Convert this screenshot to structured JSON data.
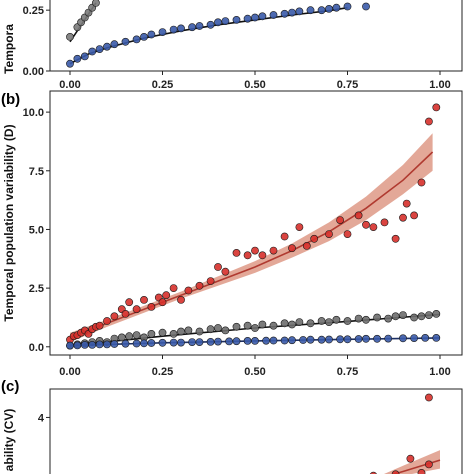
{
  "chart_data": [
    {
      "type": "scatter",
      "panel_label": "",
      "ylabel": "Tempora",
      "xlim": [
        0,
        1
      ],
      "ylim": [
        0,
        0.3
      ],
      "yticks": [
        "0.00",
        "0.25"
      ],
      "xticks": [
        "0.00",
        "0.25",
        "0.50",
        "0.75",
        "1.00"
      ],
      "grid": false,
      "series": [
        {
          "color": "#7a7a7a",
          "points": [
            [
              0.0,
              0.14
            ],
            [
              0.02,
              0.18
            ],
            [
              0.03,
              0.2
            ],
            [
              0.04,
              0.22
            ],
            [
              0.05,
              0.24
            ],
            [
              0.06,
              0.26
            ],
            [
              0.07,
              0.28
            ]
          ],
          "fit": [
            [
              0.0,
              0.12
            ],
            [
              0.07,
              0.28
            ]
          ]
        },
        {
          "color": "#3a5aa8",
          "points": [
            [
              0.0,
              0.03
            ],
            [
              0.02,
              0.05
            ],
            [
              0.04,
              0.06
            ],
            [
              0.06,
              0.08
            ],
            [
              0.08,
              0.09
            ],
            [
              0.1,
              0.1
            ],
            [
              0.12,
              0.11
            ],
            [
              0.15,
              0.12
            ],
            [
              0.18,
              0.13
            ],
            [
              0.2,
              0.14
            ],
            [
              0.22,
              0.15
            ],
            [
              0.25,
              0.16
            ],
            [
              0.28,
              0.17
            ],
            [
              0.3,
              0.175
            ],
            [
              0.33,
              0.18
            ],
            [
              0.35,
              0.185
            ],
            [
              0.38,
              0.19
            ],
            [
              0.4,
              0.2
            ],
            [
              0.42,
              0.205
            ],
            [
              0.45,
              0.21
            ],
            [
              0.48,
              0.215
            ],
            [
              0.5,
              0.22
            ],
            [
              0.52,
              0.225
            ],
            [
              0.55,
              0.23
            ],
            [
              0.58,
              0.235
            ],
            [
              0.6,
              0.24
            ],
            [
              0.62,
              0.245
            ],
            [
              0.65,
              0.25
            ],
            [
              0.68,
              0.25
            ],
            [
              0.7,
              0.255
            ],
            [
              0.72,
              0.26
            ],
            [
              0.75,
              0.265
            ],
            [
              0.8,
              0.265
            ]
          ],
          "fit": [
            [
              0.0,
              0.03
            ],
            [
              0.05,
              0.07
            ],
            [
              0.1,
              0.095
            ],
            [
              0.2,
              0.135
            ],
            [
              0.3,
              0.165
            ],
            [
              0.4,
              0.19
            ],
            [
              0.5,
              0.21
            ],
            [
              0.6,
              0.23
            ],
            [
              0.7,
              0.248
            ],
            [
              0.75,
              0.26
            ]
          ]
        }
      ]
    },
    {
      "type": "scatter",
      "panel_label": "(b)",
      "ylabel": "Temporal population variability (D)",
      "xlim": [
        0,
        1
      ],
      "ylim": [
        -0.35,
        10.9
      ],
      "yticks": [
        "0.0",
        "2.5",
        "5.0",
        "7.5",
        "10.0"
      ],
      "ytick_values": [
        0,
        2.5,
        5,
        7.5,
        10
      ],
      "xticks": [
        "0.00",
        "0.25",
        "0.50",
        "0.75",
        "1.00"
      ],
      "grid": false,
      "series": [
        {
          "color": "#d6302b",
          "fit_color": "#b03a30",
          "ci_color": "#d98b75",
          "points": [
            [
              0.0,
              0.3
            ],
            [
              0.01,
              0.45
            ],
            [
              0.02,
              0.5
            ],
            [
              0.03,
              0.6
            ],
            [
              0.04,
              0.7
            ],
            [
              0.05,
              0.55
            ],
            [
              0.06,
              0.75
            ],
            [
              0.07,
              0.85
            ],
            [
              0.08,
              0.9
            ],
            [
              0.1,
              1.1
            ],
            [
              0.12,
              1.3
            ],
            [
              0.14,
              1.6
            ],
            [
              0.15,
              1.4
            ],
            [
              0.16,
              1.9
            ],
            [
              0.18,
              1.6
            ],
            [
              0.2,
              2.0
            ],
            [
              0.22,
              1.7
            ],
            [
              0.24,
              2.1
            ],
            [
              0.25,
              1.9
            ],
            [
              0.26,
              2.2
            ],
            [
              0.28,
              2.5
            ],
            [
              0.3,
              2.0
            ],
            [
              0.32,
              2.4
            ],
            [
              0.35,
              2.6
            ],
            [
              0.38,
              2.8
            ],
            [
              0.4,
              3.4
            ],
            [
              0.42,
              3.2
            ],
            [
              0.45,
              4.0
            ],
            [
              0.48,
              3.9
            ],
            [
              0.5,
              4.1
            ],
            [
              0.52,
              3.9
            ],
            [
              0.55,
              4.1
            ],
            [
              0.58,
              4.7
            ],
            [
              0.6,
              4.2
            ],
            [
              0.62,
              5.1
            ],
            [
              0.64,
              4.3
            ],
            [
              0.66,
              4.6
            ],
            [
              0.7,
              4.8
            ],
            [
              0.73,
              5.4
            ],
            [
              0.75,
              4.8
            ],
            [
              0.78,
              5.6
            ],
            [
              0.8,
              5.2
            ],
            [
              0.82,
              5.1
            ],
            [
              0.85,
              5.3
            ],
            [
              0.88,
              4.6
            ],
            [
              0.9,
              5.5
            ],
            [
              0.91,
              6.1
            ],
            [
              0.93,
              5.6
            ],
            [
              0.95,
              7.0
            ],
            [
              0.97,
              9.6
            ],
            [
              0.99,
              10.2
            ]
          ],
          "fit": [
            [
              0.0,
              0.4
            ],
            [
              0.1,
              1.0
            ],
            [
              0.2,
              1.6
            ],
            [
              0.3,
              2.2
            ],
            [
              0.4,
              2.8
            ],
            [
              0.5,
              3.4
            ],
            [
              0.6,
              4.1
            ],
            [
              0.7,
              4.9
            ],
            [
              0.8,
              5.9
            ],
            [
              0.9,
              7.1
            ],
            [
              0.98,
              8.3
            ]
          ],
          "ci": [
            [
              0.0,
              0.2,
              0.6
            ],
            [
              0.1,
              0.85,
              1.15
            ],
            [
              0.2,
              1.45,
              1.75
            ],
            [
              0.3,
              2.05,
              2.35
            ],
            [
              0.4,
              2.6,
              3.0
            ],
            [
              0.5,
              3.15,
              3.65
            ],
            [
              0.6,
              3.8,
              4.4
            ],
            [
              0.7,
              4.5,
              5.3
            ],
            [
              0.8,
              5.4,
              6.4
            ],
            [
              0.9,
              6.5,
              7.75
            ],
            [
              0.98,
              7.5,
              9.1
            ]
          ]
        },
        {
          "color": "#6e6e6e",
          "fit_color": "#111111",
          "points": [
            [
              0.0,
              0.05
            ],
            [
              0.02,
              0.1
            ],
            [
              0.04,
              0.15
            ],
            [
              0.06,
              0.2
            ],
            [
              0.08,
              0.25
            ],
            [
              0.1,
              0.2
            ],
            [
              0.12,
              0.35
            ],
            [
              0.14,
              0.4
            ],
            [
              0.16,
              0.45
            ],
            [
              0.18,
              0.5
            ],
            [
              0.2,
              0.4
            ],
            [
              0.22,
              0.55
            ],
            [
              0.25,
              0.6
            ],
            [
              0.28,
              0.55
            ],
            [
              0.3,
              0.65
            ],
            [
              0.32,
              0.7
            ],
            [
              0.35,
              0.65
            ],
            [
              0.38,
              0.75
            ],
            [
              0.4,
              0.8
            ],
            [
              0.42,
              0.7
            ],
            [
              0.45,
              0.85
            ],
            [
              0.48,
              0.9
            ],
            [
              0.5,
              0.8
            ],
            [
              0.52,
              0.95
            ],
            [
              0.55,
              0.9
            ],
            [
              0.58,
              1.0
            ],
            [
              0.6,
              0.95
            ],
            [
              0.62,
              1.05
            ],
            [
              0.65,
              1.0
            ],
            [
              0.68,
              1.1
            ],
            [
              0.7,
              1.05
            ],
            [
              0.72,
              1.15
            ],
            [
              0.75,
              1.1
            ],
            [
              0.78,
              1.2
            ],
            [
              0.8,
              1.15
            ],
            [
              0.83,
              1.25
            ],
            [
              0.86,
              1.2
            ],
            [
              0.88,
              1.3
            ],
            [
              0.9,
              1.35
            ],
            [
              0.93,
              1.25
            ],
            [
              0.95,
              1.3
            ],
            [
              0.97,
              1.35
            ],
            [
              0.99,
              1.4
            ]
          ],
          "fit": [
            [
              0.0,
              0.05
            ],
            [
              0.25,
              0.45
            ],
            [
              0.5,
              0.8
            ],
            [
              0.75,
              1.08
            ],
            [
              1.0,
              1.38
            ]
          ]
        },
        {
          "color": "#3a5aa8",
          "fit_color": "#1d2f63",
          "points": [
            [
              0.0,
              0.05
            ],
            [
              0.02,
              0.06
            ],
            [
              0.04,
              0.08
            ],
            [
              0.06,
              0.08
            ],
            [
              0.08,
              0.1
            ],
            [
              0.1,
              0.1
            ],
            [
              0.12,
              0.12
            ],
            [
              0.15,
              0.13
            ],
            [
              0.18,
              0.14
            ],
            [
              0.2,
              0.15
            ],
            [
              0.22,
              0.16
            ],
            [
              0.25,
              0.17
            ],
            [
              0.28,
              0.18
            ],
            [
              0.3,
              0.18
            ],
            [
              0.33,
              0.2
            ],
            [
              0.35,
              0.2
            ],
            [
              0.38,
              0.21
            ],
            [
              0.4,
              0.22
            ],
            [
              0.43,
              0.23
            ],
            [
              0.45,
              0.24
            ],
            [
              0.48,
              0.25
            ],
            [
              0.5,
              0.25
            ],
            [
              0.53,
              0.26
            ],
            [
              0.55,
              0.27
            ],
            [
              0.58,
              0.27
            ],
            [
              0.6,
              0.28
            ],
            [
              0.63,
              0.29
            ],
            [
              0.65,
              0.3
            ],
            [
              0.68,
              0.3
            ],
            [
              0.7,
              0.31
            ],
            [
              0.73,
              0.32
            ],
            [
              0.75,
              0.32
            ],
            [
              0.78,
              0.33
            ],
            [
              0.8,
              0.34
            ],
            [
              0.83,
              0.34
            ],
            [
              0.86,
              0.35
            ],
            [
              0.9,
              0.36
            ],
            [
              0.93,
              0.37
            ],
            [
              0.96,
              0.38
            ],
            [
              0.99,
              0.38
            ]
          ],
          "fit": [
            [
              0.0,
              0.05
            ],
            [
              0.25,
              0.17
            ],
            [
              0.5,
              0.25
            ],
            [
              0.75,
              0.32
            ],
            [
              1.0,
              0.38
            ]
          ]
        }
      ]
    },
    {
      "type": "scatter",
      "panel_label": "(c)",
      "ylabel": "ability (CV)",
      "xlim": [
        0,
        1
      ],
      "ylim": [
        1.8,
        5.0
      ],
      "yticks": [
        "4"
      ],
      "ytick_values": [
        4
      ],
      "grid": false,
      "series": [
        {
          "color": "#d6302b",
          "fit_color": "#b03a30",
          "ci_color": "#d98b75",
          "points": [
            [
              0.82,
              1.95
            ],
            [
              0.88,
              2.0
            ],
            [
              0.92,
              2.55
            ],
            [
              0.95,
              2.05
            ],
            [
              0.97,
              2.35
            ],
            [
              0.97,
              4.7
            ]
          ],
          "fit": [
            [
              0.82,
              1.8
            ],
            [
              0.9,
              2.1
            ],
            [
              1.0,
              2.5
            ]
          ],
          "ci": [
            [
              0.82,
              1.75,
              1.85
            ],
            [
              0.9,
              1.95,
              2.3
            ],
            [
              1.0,
              2.2,
              2.85
            ]
          ]
        }
      ]
    }
  ]
}
